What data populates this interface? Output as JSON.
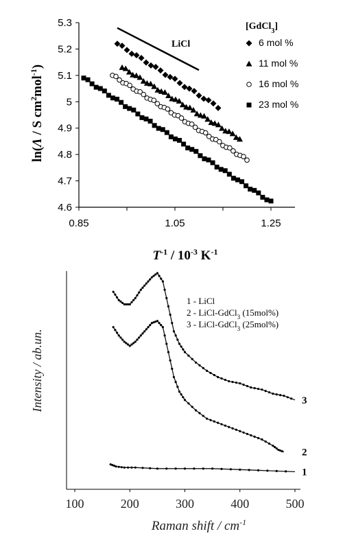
{
  "chart_data": [
    {
      "type": "scatter",
      "xlabel_parts": {
        "base": "T",
        "exp": "-1",
        "rest": " / 10",
        "exp2": "-3",
        "rest2": " K",
        "exp3": "-1"
      },
      "ylabel_parts": {
        "pre": "ln(",
        "lambda": "Λ",
        "mid": " / S cm",
        "exp": "2",
        "mid2": "mol",
        "exp2": "-1",
        "post": ")"
      },
      "xlim": [
        0.85,
        1.3
      ],
      "ylim": [
        4.6,
        5.3
      ],
      "xticks": [
        "0.85",
        "1.05",
        "1.25"
      ],
      "yticks": [
        "4.6",
        "4.7",
        "4.8",
        "4.9",
        "5",
        "5.1",
        "5.2",
        "5.3"
      ],
      "legend_title": {
        "base": "[GdCl",
        "sub": "3",
        "post": "]"
      },
      "legend_placement": "top-right",
      "annotation": "LiCl",
      "line_licl": {
        "x": [
          0.93,
          1.1
        ],
        "y": [
          5.28,
          5.12
        ]
      },
      "series": [
        {
          "name": "6 mol %",
          "marker": "diamond",
          "x_start": 0.93,
          "x_end": 1.14,
          "y_start": 5.22,
          "y_end": 4.98,
          "n": 22,
          "trend": false
        },
        {
          "name": "11 mol %",
          "marker": "triangle",
          "x_start": 0.94,
          "x_end": 1.185,
          "y_start": 5.13,
          "y_end": 4.86,
          "n": 34,
          "trend": true
        },
        {
          "name": "16 mol %",
          "marker": "circle",
          "x_start": 0.92,
          "x_end": 1.2,
          "y_start": 5.1,
          "y_end": 4.78,
          "n": 40,
          "trend": false
        },
        {
          "name": "23 mol %",
          "marker": "square",
          "x_start": 0.86,
          "x_end": 1.25,
          "y_start": 5.09,
          "y_end": 4.62,
          "n": 46,
          "trend": false
        }
      ]
    },
    {
      "type": "line",
      "xlabel_parts": {
        "main": "Raman shift / cm",
        "exp": "-1"
      },
      "ylabel": "Intensity / ab.un.",
      "xlim": [
        85,
        510
      ],
      "ylim": [
        0,
        100
      ],
      "xticks": [
        "100",
        "200",
        "300",
        "400",
        "500"
      ],
      "legend_lines": [
        {
          "base": "1 - LiCl",
          "sub": "",
          "post": ""
        },
        {
          "base": "2 - LiCl-GdCl",
          "sub": "3",
          "post": "  (15mol%)"
        },
        {
          "base": "3 - LiCl-GdCl",
          "sub": "3",
          "post": "  (25mol%)"
        }
      ],
      "legend_placement": "top-right",
      "series": [
        {
          "name": "1",
          "x": [
            165,
            175,
            190,
            210,
            250,
            300,
            350,
            400,
            450,
            500
          ],
          "y": [
            8,
            7,
            6.5,
            6.5,
            6,
            6,
            6,
            5.5,
            5,
            4.5
          ]
        },
        {
          "name": "2",
          "x": [
            170,
            180,
            190,
            200,
            210,
            220,
            230,
            240,
            250,
            260,
            270,
            280,
            290,
            300,
            320,
            340,
            360,
            380,
            400,
            420,
            440,
            460,
            470,
            480
          ],
          "y": [
            74,
            70,
            67,
            65,
            67,
            70,
            73,
            76,
            77,
            74,
            62,
            50,
            43,
            39,
            34,
            30,
            28,
            26,
            24,
            22,
            20,
            17,
            15,
            14
          ]
        },
        {
          "name": "3",
          "x": [
            170,
            180,
            190,
            200,
            210,
            220,
            230,
            240,
            250,
            260,
            270,
            280,
            290,
            300,
            320,
            340,
            360,
            380,
            400,
            420,
            440,
            460,
            480,
            500
          ],
          "y": [
            91,
            87,
            85,
            85,
            88,
            92,
            95,
            98,
            100,
            96,
            84,
            72,
            66,
            62,
            57,
            53,
            50,
            48,
            47,
            45,
            44,
            42,
            41,
            39
          ]
        }
      ]
    }
  ]
}
